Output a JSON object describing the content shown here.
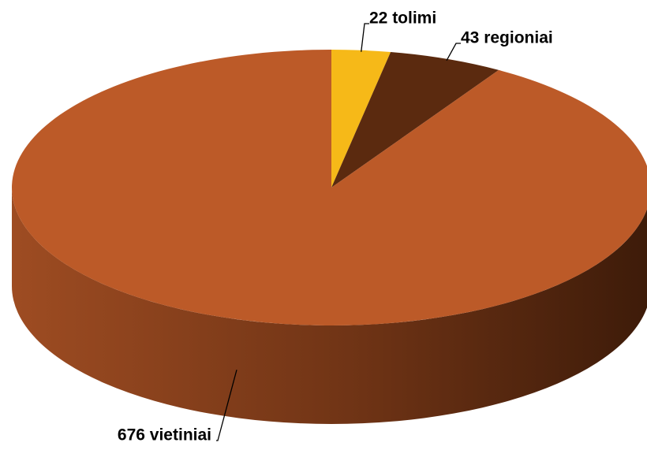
{
  "chart_data": {
    "type": "pie",
    "values": [
      22,
      43,
      676
    ],
    "value_labels": [
      "22 tolimi",
      "43 regioniai",
      "676 vietiniai"
    ],
    "colors": [
      "#f6b918",
      "#5b2a0f",
      "#bc5a28"
    ]
  }
}
